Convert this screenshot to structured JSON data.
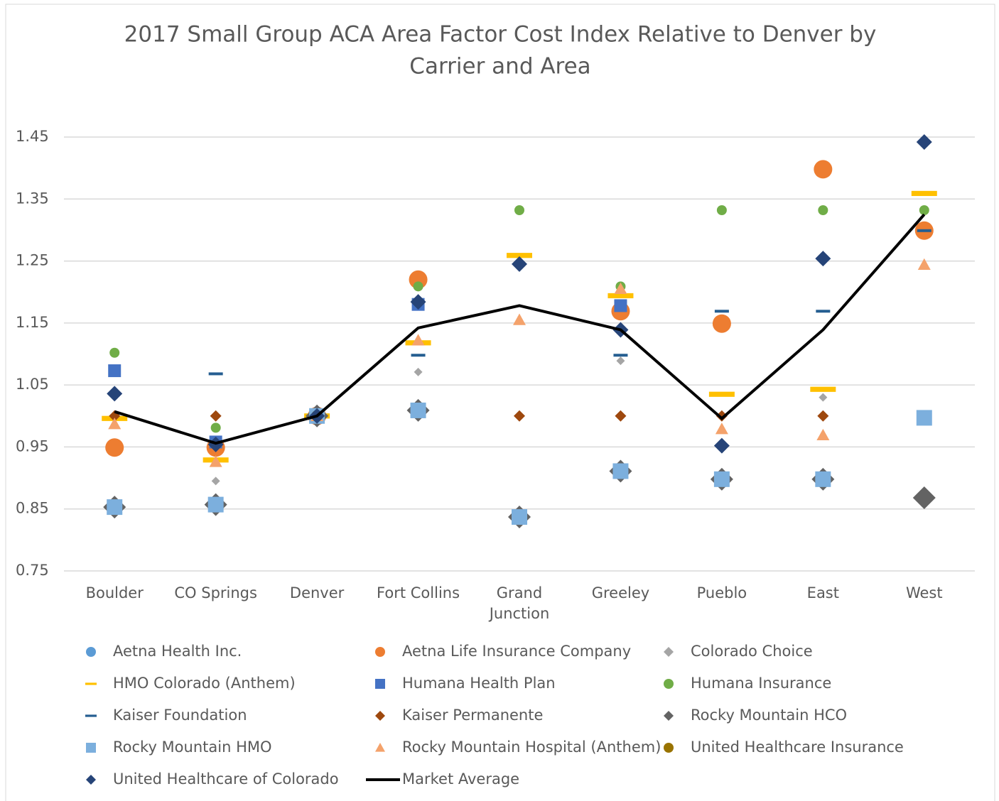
{
  "chart_data": {
    "type": "scatter",
    "title": [
      "2017 Small Group ACA Area Factor Cost Index Relative to Denver by",
      "Carrier and Area"
    ],
    "categories": [
      "Boulder",
      "CO Springs",
      "Denver",
      "Fort Collins",
      "Grand Junction",
      "Greeley",
      "Pueblo",
      "East",
      "West"
    ],
    "ylim": [
      0.75,
      1.45
    ],
    "yticks": [
      0.75,
      0.85,
      0.95,
      1.05,
      1.15,
      1.25,
      1.35,
      1.45
    ],
    "grid": true,
    "legend": "bottom",
    "series": [
      {
        "name": "Aetna Health Inc.",
        "color": "#5b9bd5",
        "marker": "circle",
        "values": [
          null,
          null,
          1.0,
          null,
          null,
          null,
          null,
          null,
          null
        ]
      },
      {
        "name": "Aetna Life Insurance Company",
        "color": "#ed7d31",
        "marker": "circle",
        "values": [
          0.949,
          0.949,
          1.0,
          1.22,
          null,
          1.169,
          1.149,
          1.398,
          1.299
        ]
      },
      {
        "name": "Colorado Choice",
        "color": "#a5a5a5",
        "marker": "diamond",
        "values": [
          null,
          0.895,
          1.0,
          1.071,
          null,
          1.089,
          null,
          1.03,
          null
        ]
      },
      {
        "name": "HMO Colorado (Anthem)",
        "color": "#ffc000",
        "marker": "dash",
        "values": [
          0.996,
          0.929,
          1.0,
          1.118,
          1.259,
          1.194,
          1.035,
          1.043,
          1.359
        ]
      },
      {
        "name": "Humana Health Plan",
        "color": "#4472c4",
        "marker": "square",
        "values": [
          1.073,
          0.958,
          1.0,
          1.18,
          null,
          1.178,
          null,
          null,
          null
        ]
      },
      {
        "name": "Humana Insurance",
        "color": "#70ad47",
        "marker": "circle",
        "values": [
          1.102,
          0.981,
          1.0,
          1.209,
          1.332,
          1.209,
          1.332,
          1.332,
          1.332
        ]
      },
      {
        "name": "Kaiser Foundation",
        "color": "#255e91",
        "marker": "dash",
        "values": [
          null,
          1.068,
          1.0,
          1.098,
          null,
          1.098,
          1.169,
          1.169,
          1.299
        ]
      },
      {
        "name": "Kaiser Permanente",
        "color": "#9e480e",
        "marker": "diamond",
        "values": [
          1.0,
          1.0,
          1.0,
          null,
          1.0,
          1.0,
          1.0,
          1.0,
          null
        ]
      },
      {
        "name": "Rocky Mountain HCO",
        "color": "#636363",
        "marker": "diamond",
        "values": [
          0.853,
          0.857,
          1.0,
          1.009,
          0.837,
          0.911,
          0.898,
          0.898,
          0.868
        ]
      },
      {
        "name": "Rocky Mountain HMO",
        "color": "#7cafdd",
        "marker": "square",
        "values": [
          0.853,
          0.857,
          1.0,
          1.009,
          0.837,
          0.911,
          0.898,
          0.898,
          0.997
        ]
      },
      {
        "name": "Rocky Mountain Hospital (Anthem)",
        "color": "#f4a26b",
        "marker": "triangle",
        "values": [
          0.987,
          0.926,
          1.0,
          1.122,
          1.155,
          1.205,
          0.979,
          0.969,
          1.244
        ]
      },
      {
        "name": "United Healthcare Insurance",
        "color": "#997300",
        "marker": "circle",
        "values": [
          null,
          null,
          1.0,
          null,
          null,
          null,
          null,
          null,
          null
        ]
      },
      {
        "name": "United Healthcare of Colorado",
        "color": "#264478",
        "marker": "diamond",
        "values": [
          1.036,
          0.954,
          1.0,
          1.184,
          1.245,
          1.139,
          0.952,
          1.254,
          1.442
        ]
      },
      {
        "name": "Market Average",
        "color": "#000000",
        "marker": "line",
        "values": [
          1.007,
          0.956,
          1.0,
          1.142,
          1.178,
          1.139,
          0.996,
          1.139,
          1.325
        ]
      }
    ]
  }
}
